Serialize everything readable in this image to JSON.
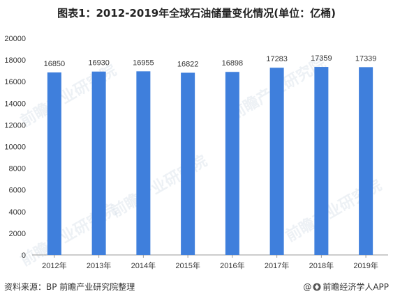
{
  "title": "图表1：2012-2019年全球石油储量变化情况(单位：亿桶)",
  "footer": {
    "source": "资料来源：BP  前瞻产业研究院整理",
    "brand": "前瞻经济学人APP",
    "at_symbol": "@"
  },
  "watermark": "前瞻产业研究院",
  "colors": {
    "bar": "#3F7FDC",
    "axis": "#999999"
  },
  "chart_data": {
    "type": "bar",
    "title": "图表1：2012-2019年全球石油储量变化情况(单位：亿桶)",
    "categories": [
      "2012年",
      "2013年",
      "2014年",
      "2015年",
      "2016年",
      "2017年",
      "2018年",
      "2019年"
    ],
    "values": [
      16850,
      16930,
      16955,
      16822,
      16898,
      17283,
      17359,
      17339
    ],
    "data_labels": [
      "16850",
      "16930",
      "16955",
      "16822",
      "16898",
      "17283",
      "17359",
      "17339"
    ],
    "yticks": [
      "0",
      "2000",
      "4000",
      "6000",
      "8000",
      "10000",
      "12000",
      "14000",
      "16000",
      "18000",
      "20000"
    ],
    "ylim": [
      0,
      20000
    ],
    "xlabel": "",
    "ylabel": "",
    "grid": false,
    "legend": "none"
  }
}
